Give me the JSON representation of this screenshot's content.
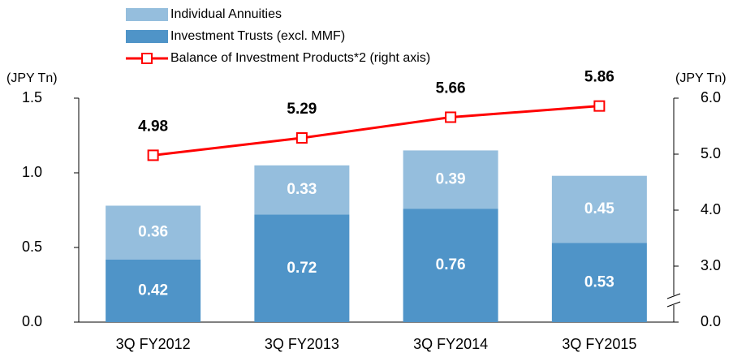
{
  "chart_data": {
    "type": "bar",
    "categories": [
      "3Q FY2012",
      "3Q FY2013",
      "3Q FY2014",
      "3Q FY2015"
    ],
    "stacked": true,
    "series": [
      {
        "name": "Investment Trusts (excl. MMF)",
        "color": "#4f94c8",
        "values": [
          0.42,
          0.72,
          0.76,
          0.53
        ]
      },
      {
        "name": "Individual Annuities",
        "color": "#95bedd",
        "values": [
          0.36,
          0.33,
          0.39,
          0.45
        ]
      },
      {
        "name": "Balance of Investment Products*2 (right axis)",
        "color": "#ff0000",
        "type": "line",
        "axis": "y2",
        "values": [
          4.98,
          5.29,
          5.66,
          5.86
        ]
      }
    ],
    "ylabel": "(JPY Tn)",
    "y2label": "(JPY Tn)",
    "ylim": [
      0,
      1.5
    ],
    "yticks": [
      {
        "value": 0,
        "label": "0.0"
      },
      {
        "value": 0.5,
        "label": "0.5"
      },
      {
        "value": 1.0,
        "label": "1.0"
      },
      {
        "value": 1.5,
        "label": "1.5"
      }
    ],
    "y2lim": [
      2,
      6
    ],
    "y2_break": true,
    "y2ticks": [
      {
        "value": 0,
        "label": "0.0"
      },
      {
        "value": 3,
        "label": "3.0"
      },
      {
        "value": 4,
        "label": "4.0"
      },
      {
        "value": 5,
        "label": "5.0"
      },
      {
        "value": 6,
        "label": "6.0"
      }
    ]
  }
}
